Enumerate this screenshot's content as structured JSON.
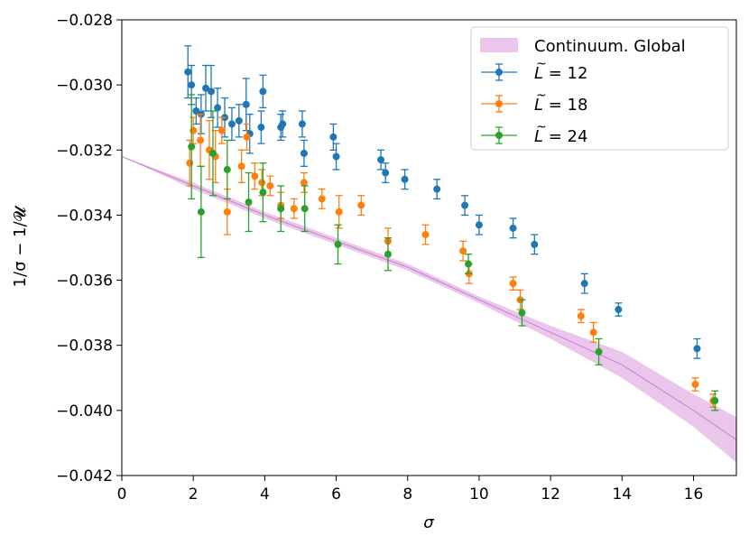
{
  "chart_data": {
    "type": "scatter",
    "title": "",
    "xlabel": "σ",
    "ylabel": "1/σ − 1/𝓤",
    "xlim": [
      0,
      17.2
    ],
    "ylim": [
      -0.042,
      -0.028
    ],
    "x_ticks": [
      0,
      2,
      4,
      6,
      8,
      10,
      12,
      14,
      16
    ],
    "x_tick_labels": [
      "0",
      "2",
      "4",
      "6",
      "8",
      "10",
      "12",
      "14",
      "16"
    ],
    "y_ticks": [
      -0.028,
      -0.03,
      -0.032,
      -0.034,
      -0.036,
      -0.038,
      -0.04,
      -0.042
    ],
    "y_tick_labels": [
      "−0.028",
      "−0.030",
      "−0.032",
      "−0.034",
      "−0.036",
      "−0.038",
      "−0.040",
      "−0.042"
    ],
    "legend_position": "top-right",
    "band": {
      "name": "Continuum. Global",
      "color": "#dda0dd",
      "x": [
        0,
        2,
        4,
        6,
        8,
        10,
        12,
        14,
        16,
        17.2
      ],
      "y": [
        -0.0322,
        -0.0331,
        -0.034,
        -0.0348,
        -0.0356,
        -0.0366,
        -0.0376,
        -0.0386,
        -0.04,
        -0.0409
      ],
      "lower": [
        -0.0322,
        -0.0332,
        -0.0341,
        -0.0349,
        -0.0357,
        -0.0367,
        -0.0378,
        -0.039,
        -0.0405,
        -0.0416
      ],
      "upper": [
        -0.0322,
        -0.033,
        -0.0339,
        -0.0347,
        -0.0355,
        -0.0365,
        -0.0374,
        -0.0382,
        -0.0395,
        -0.0402
      ]
    },
    "series": [
      {
        "name": "L̃ = 12",
        "label_main": "L",
        "label_rest": " = 12",
        "color": "#1f77b4",
        "points": [
          [
            1.85,
            -0.0296,
            0.0008
          ],
          [
            1.95,
            -0.03,
            0.0006
          ],
          [
            2.08,
            -0.0308,
            0.0004
          ],
          [
            2.22,
            -0.0309,
            0.0006
          ],
          [
            2.35,
            -0.0301,
            0.0007
          ],
          [
            2.5,
            -0.0302,
            0.0008
          ],
          [
            2.68,
            -0.0307,
            0.0006
          ],
          [
            2.88,
            -0.031,
            0.0006
          ],
          [
            3.08,
            -0.0312,
            0.0005
          ],
          [
            3.28,
            -0.0311,
            0.0005
          ],
          [
            3.48,
            -0.0306,
            0.0008
          ],
          [
            3.58,
            -0.0315,
            0.0006
          ],
          [
            3.9,
            -0.0313,
            0.0005
          ],
          [
            3.95,
            -0.0302,
            0.0005
          ],
          [
            4.45,
            -0.0313,
            0.0004
          ],
          [
            4.5,
            -0.0312,
            0.0004
          ],
          [
            5.05,
            -0.0312,
            0.0004
          ],
          [
            5.1,
            -0.0321,
            0.0004
          ],
          [
            5.92,
            -0.0316,
            0.0004
          ],
          [
            6.0,
            -0.0322,
            0.0004
          ],
          [
            7.25,
            -0.0323,
            0.0003
          ],
          [
            7.38,
            -0.0327,
            0.0003
          ],
          [
            7.92,
            -0.0329,
            0.0003
          ],
          [
            8.82,
            -0.0332,
            0.0003
          ],
          [
            9.6,
            -0.0337,
            0.0003
          ],
          [
            10.0,
            -0.0343,
            0.0003
          ],
          [
            10.95,
            -0.0344,
            0.0003
          ],
          [
            11.55,
            -0.0349,
            0.0003
          ],
          [
            12.95,
            -0.0361,
            0.0003
          ],
          [
            13.9,
            -0.0369,
            0.0002
          ],
          [
            16.1,
            -0.0381,
            0.0003
          ]
        ]
      },
      {
        "name": "L̃ = 18",
        "label_main": "L",
        "label_rest": " = 18",
        "color": "#ff7f0e",
        "points": [
          [
            1.9,
            -0.0324,
            0.0007
          ],
          [
            2.0,
            -0.0314,
            0.0004
          ],
          [
            2.2,
            -0.0317,
            0.0008
          ],
          [
            2.45,
            -0.032,
            0.0009
          ],
          [
            2.62,
            -0.0322,
            0.0008
          ],
          [
            2.8,
            -0.0314,
            0.0004
          ],
          [
            2.95,
            -0.0339,
            0.0007
          ],
          [
            3.35,
            -0.0325,
            0.0005
          ],
          [
            3.5,
            -0.0316,
            0.0004
          ],
          [
            3.72,
            -0.0328,
            0.0004
          ],
          [
            3.92,
            -0.033,
            0.0004
          ],
          [
            4.15,
            -0.0331,
            0.0003
          ],
          [
            4.45,
            -0.0337,
            0.0004
          ],
          [
            4.82,
            -0.0338,
            0.0003
          ],
          [
            5.1,
            -0.033,
            0.0003
          ],
          [
            5.6,
            -0.0335,
            0.0003
          ],
          [
            6.08,
            -0.0339,
            0.0005
          ],
          [
            6.7,
            -0.0337,
            0.0003
          ],
          [
            7.45,
            -0.0348,
            0.0004
          ],
          [
            8.5,
            -0.0346,
            0.0003
          ],
          [
            9.55,
            -0.0351,
            0.0003
          ],
          [
            9.72,
            -0.0358,
            0.0003
          ],
          [
            10.95,
            -0.0361,
            0.0002
          ],
          [
            11.15,
            -0.0366,
            0.0003
          ],
          [
            12.85,
            -0.0371,
            0.0002
          ],
          [
            13.2,
            -0.0376,
            0.0003
          ],
          [
            16.05,
            -0.0392,
            0.0002
          ],
          [
            16.55,
            -0.0397,
            0.0002
          ]
        ]
      },
      {
        "name": "L̃ = 24",
        "label_main": "L",
        "label_rest": " = 24",
        "color": "#2ca02c",
        "points": [
          [
            1.95,
            -0.0319,
            0.0016
          ],
          [
            2.22,
            -0.0339,
            0.0014
          ],
          [
            2.55,
            -0.0321,
            0.0013
          ],
          [
            2.95,
            -0.0326,
            0.0009
          ],
          [
            3.55,
            -0.0336,
            0.0009
          ],
          [
            3.95,
            -0.0333,
            0.0009
          ],
          [
            4.45,
            -0.0338,
            0.0007
          ],
          [
            5.12,
            -0.0338,
            0.0007
          ],
          [
            6.05,
            -0.0349,
            0.0006
          ],
          [
            7.45,
            -0.0352,
            0.0005
          ],
          [
            9.7,
            -0.0355,
            0.0003
          ],
          [
            11.2,
            -0.037,
            0.0004
          ],
          [
            13.35,
            -0.0382,
            0.0004
          ],
          [
            16.6,
            -0.0397,
            0.0003
          ]
        ]
      }
    ]
  }
}
